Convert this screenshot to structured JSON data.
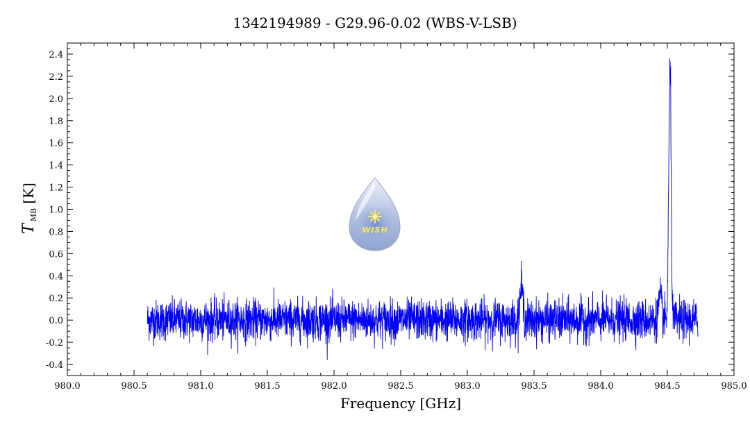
{
  "chart_data": {
    "type": "line",
    "title": "1342194989 - G29.96-0.02 (WBS-V-LSB)",
    "xlabel": "Frequency [GHz]",
    "ylabel_main": "T",
    "ylabel_sub": "MB",
    "ylabel_unit": "[K]",
    "xlim": [
      980.0,
      985.0
    ],
    "ylim": [
      -0.5,
      2.5
    ],
    "x_ticks": [
      "980.0",
      "980.5",
      "981.0",
      "981.5",
      "982.0",
      "982.5",
      "983.0",
      "983.5",
      "984.0",
      "984.5",
      "985.0"
    ],
    "y_ticks": [
      "-0.4",
      "-0.2",
      "0.0",
      "0.2",
      "0.4",
      "0.6",
      "0.8",
      "1.0",
      "1.2",
      "1.4",
      "1.6",
      "1.8",
      "2.0",
      "2.2",
      "2.4"
    ],
    "grid": false,
    "series": [
      {
        "color": "#0000ff",
        "x_start": 980.6,
        "x_end": 984.73,
        "noise_rms": 0.09,
        "features": [
          {
            "x": 983.405,
            "peak": 0.3,
            "width": 0.012
          },
          {
            "x": 984.445,
            "peak": 0.2,
            "width": 0.012
          },
          {
            "x": 984.51,
            "peak": 0.8,
            "width": 0.006
          },
          {
            "x": 984.522,
            "peak": 2.15,
            "width": 0.007
          }
        ]
      }
    ]
  },
  "logo": {
    "text": "WISH",
    "icon": "wish-water-drop-logo"
  }
}
